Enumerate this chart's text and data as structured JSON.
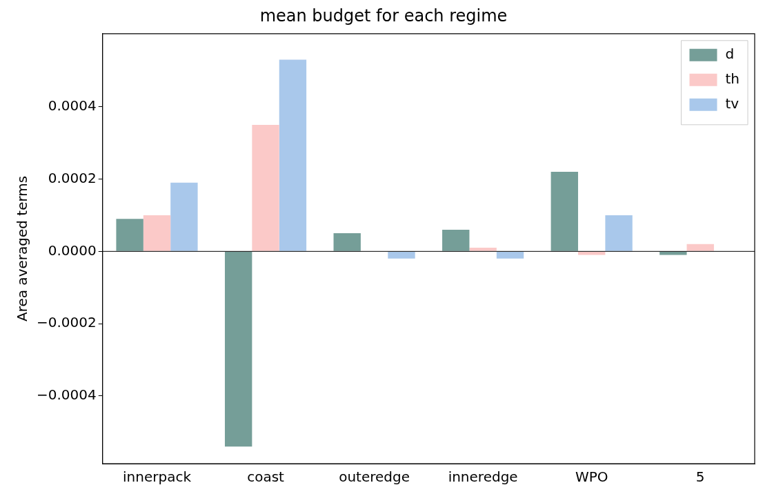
{
  "chart_data": {
    "type": "bar",
    "title": "mean budget for each regime",
    "ylabel": "Area averaged terms",
    "categories": [
      "innerpack",
      "coast",
      "outeredge",
      "inneredge",
      "WPO",
      "5"
    ],
    "series": [
      {
        "name": "d",
        "color": "#759e98",
        "values": [
          9e-05,
          -0.00054,
          5e-05,
          6e-05,
          0.00022,
          -1e-05
        ]
      },
      {
        "name": "th",
        "color": "#fbc9c8",
        "values": [
          0.0001,
          0.00035,
          0,
          1e-05,
          -1e-05,
          2e-05
        ]
      },
      {
        "name": "tv",
        "color": "#a9c8eb",
        "values": [
          0.00019,
          0.00053,
          -2e-05,
          -2e-05,
          0.0001,
          0
        ]
      }
    ],
    "ylim": [
      -0.000587,
      0.000602
    ],
    "yticks": [
      {
        "value": -0.0004,
        "label": "−0.0004"
      },
      {
        "value": -0.0002,
        "label": "−0.0002"
      },
      {
        "value": 0,
        "label": "0.0000"
      },
      {
        "value": 0.0002,
        "label": "0.0002"
      },
      {
        "value": 0.0004,
        "label": "0.0004"
      }
    ],
    "ref_lines": [
      {
        "axis": "y",
        "value": 0,
        "color": "#000000"
      }
    ],
    "legend": "top right",
    "grid": false
  }
}
